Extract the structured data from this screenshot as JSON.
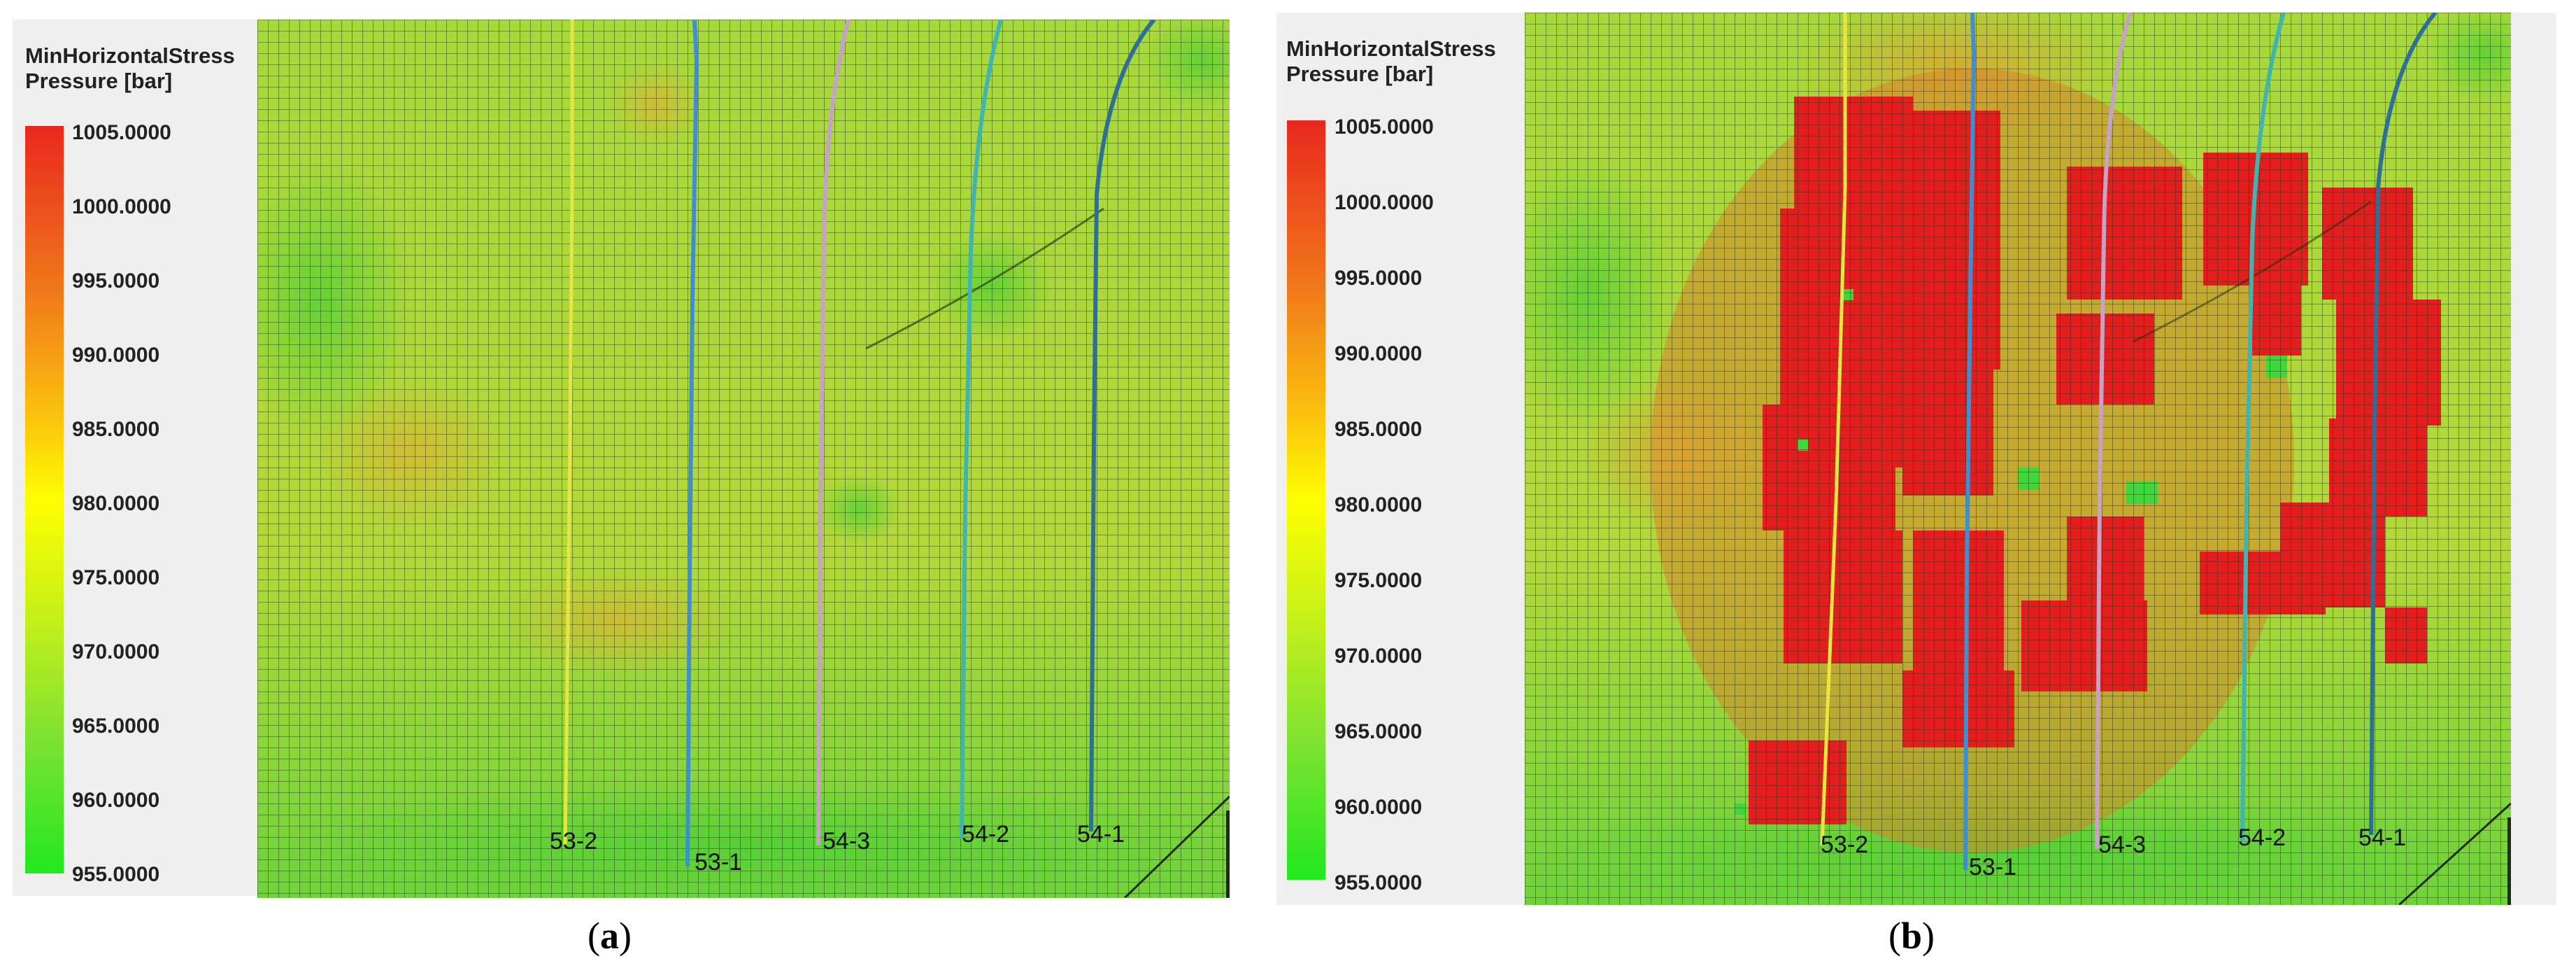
{
  "legend": {
    "title_line1": "MinHorizontalStress",
    "title_line2": "Pressure [bar]",
    "ticks": [
      "1005.0000",
      "1000.0000",
      "995.0000",
      "990.0000",
      "985.0000",
      "980.0000",
      "975.0000",
      "970.0000",
      "965.0000",
      "960.0000",
      "955.0000"
    ],
    "range": [
      955,
      1005
    ],
    "colors": [
      "#e8281e",
      "#f0781a",
      "#fbc80d",
      "#ffff00",
      "#c4f01a",
      "#7ee232",
      "#22e81e"
    ]
  },
  "wells": [
    {
      "name": "53-2",
      "color": "#e6e640"
    },
    {
      "name": "53-1",
      "color": "#3f8fd0"
    },
    {
      "name": "54-3",
      "color": "#c7a3c3"
    },
    {
      "name": "54-2",
      "color": "#40b5b0"
    },
    {
      "name": "54-1",
      "color": "#2d7096"
    }
  ],
  "panels": [
    {
      "caption_open": "(",
      "caption_letter": "a",
      "caption_close": ")"
    },
    {
      "caption_open": "(",
      "caption_letter": "b",
      "caption_close": ")"
    }
  ]
}
